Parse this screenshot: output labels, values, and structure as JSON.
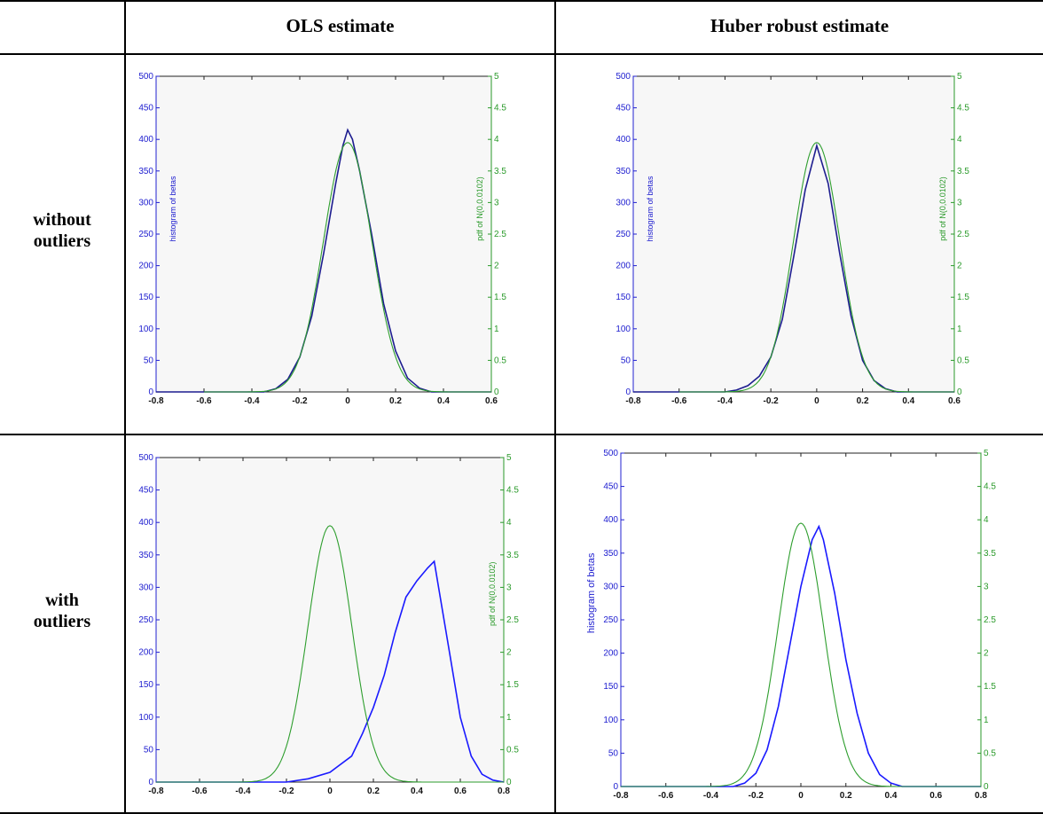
{
  "table": {
    "header": {
      "col1": "OLS estimate",
      "col2": "Huber robust estimate"
    },
    "rows": [
      {
        "label_line1": "without",
        "label_line2": "outliers"
      },
      {
        "label_line1": "with",
        "label_line2": "outliers"
      }
    ]
  },
  "colors": {
    "histogram": "#1a1aff",
    "histogram_dark": "#1d1d8f",
    "pdf": "#2e9e2e",
    "axis_left": "#2020d0",
    "axis_right": "#2a9a2a"
  },
  "chart_data": [
    {
      "id": "ols-without-outliers",
      "type": "line",
      "ylabel_left": "histogram of betas",
      "ylabel_right": "pdf of N(0,0.0102)",
      "xlim": [
        -0.8,
        0.6
      ],
      "ylim_left": [
        0,
        500
      ],
      "ylim_right": [
        0,
        5
      ],
      "x_ticks": [
        "-0.8",
        "-0.6",
        "-0.4",
        "-0.2",
        "0",
        "0.2",
        "0.4",
        "0.6"
      ],
      "y_left_ticks": [
        "0",
        "50",
        "100",
        "150",
        "200",
        "250",
        "300",
        "350",
        "400",
        "450",
        "500"
      ],
      "y_right_ticks": [
        "0",
        "0.5",
        "1",
        "1.5",
        "2",
        "2.5",
        "3",
        "3.5",
        "4",
        "4.5",
        "5"
      ],
      "series": [
        {
          "axis": "left",
          "color_key": "histogram_dark",
          "x": [
            -0.35,
            -0.3,
            -0.25,
            -0.2,
            -0.15,
            -0.1,
            -0.05,
            -0.02,
            0,
            0.02,
            0.05,
            0.1,
            0.15,
            0.2,
            0.25,
            0.3,
            0.35
          ],
          "values": [
            0,
            5,
            20,
            55,
            120,
            220,
            330,
            390,
            415,
            400,
            350,
            250,
            140,
            65,
            22,
            6,
            0
          ]
        },
        {
          "axis": "right",
          "color_key": "pdf",
          "mu": 0,
          "variance": 0.0102,
          "x_range": [
            -0.6,
            0.6
          ]
        }
      ]
    },
    {
      "id": "huber-without-outliers",
      "type": "line",
      "ylabel_left": "histogram of betas",
      "ylabel_right": "pdf of N(0,0.0102)",
      "xlim": [
        -0.8,
        0.6
      ],
      "ylim_left": [
        0,
        500
      ],
      "ylim_right": [
        0,
        5
      ],
      "x_ticks": [
        "-0.8",
        "-0.6",
        "-0.4",
        "-0.2",
        "0",
        "0.2",
        "0.4",
        "0.6"
      ],
      "y_left_ticks": [
        "0",
        "50",
        "100",
        "150",
        "200",
        "250",
        "300",
        "350",
        "400",
        "450",
        "500"
      ],
      "y_right_ticks": [
        "0",
        "0.5",
        "1",
        "1.5",
        "2",
        "2.5",
        "3",
        "3.5",
        "4",
        "4.5",
        "5"
      ],
      "series": [
        {
          "axis": "left",
          "color_key": "histogram_dark",
          "x": [
            -0.4,
            -0.35,
            -0.3,
            -0.25,
            -0.2,
            -0.15,
            -0.1,
            -0.05,
            0,
            0.05,
            0.1,
            0.15,
            0.2,
            0.25,
            0.3,
            0.35
          ],
          "values": [
            0,
            3,
            10,
            25,
            55,
            115,
            215,
            320,
            390,
            330,
            220,
            120,
            50,
            18,
            5,
            0
          ]
        },
        {
          "axis": "right",
          "color_key": "pdf",
          "mu": 0,
          "variance": 0.0102,
          "x_range": [
            -0.6,
            0.6
          ]
        }
      ]
    },
    {
      "id": "ols-with-outliers",
      "type": "line",
      "ylabel_left": "",
      "ylabel_right": "pdf of N(0,0.0102)",
      "xlim": [
        -0.8,
        0.8
      ],
      "ylim_left": [
        0,
        500
      ],
      "ylim_right": [
        0,
        5
      ],
      "x_ticks": [
        "-0.8",
        "-0.6",
        "-0.4",
        "-0.2",
        "0",
        "0.2",
        "0.4",
        "0.6",
        "0.8"
      ],
      "y_left_ticks": [
        "0",
        "50",
        "100",
        "150",
        "200",
        "250",
        "300",
        "350",
        "400",
        "450",
        "500"
      ],
      "y_right_ticks": [
        "0",
        "0.5",
        "1",
        "1.5",
        "2",
        "2.5",
        "3",
        "3.5",
        "4",
        "4.5",
        "5"
      ],
      "series": [
        {
          "axis": "left",
          "color_key": "histogram",
          "x": [
            -0.2,
            -0.1,
            0,
            0.1,
            0.15,
            0.2,
            0.25,
            0.3,
            0.35,
            0.4,
            0.45,
            0.48,
            0.5,
            0.55,
            0.6,
            0.65,
            0.7,
            0.75,
            0.8
          ],
          "values": [
            0,
            5,
            15,
            40,
            75,
            115,
            165,
            230,
            285,
            310,
            330,
            340,
            300,
            200,
            100,
            40,
            12,
            3,
            0
          ]
        },
        {
          "axis": "right",
          "color_key": "pdf",
          "mu": 0,
          "variance": 0.0102,
          "x_range": [
            -0.8,
            0.8
          ]
        }
      ]
    },
    {
      "id": "huber-with-outliers",
      "type": "line",
      "ylabel_left": "histogram of betas",
      "ylabel_right": "",
      "xlim": [
        -0.8,
        0.8
      ],
      "ylim_left": [
        0,
        500
      ],
      "ylim_right": [
        0,
        5
      ],
      "x_ticks": [
        "-0.8",
        "-0.6",
        "-0.4",
        "-0.2",
        "0",
        "0.2",
        "0.4",
        "0.6",
        "0.8"
      ],
      "y_left_ticks": [
        "0",
        "50",
        "100",
        "150",
        "200",
        "250",
        "300",
        "350",
        "400",
        "450",
        "500"
      ],
      "y_right_ticks": [
        "0",
        "0.5",
        "1",
        "1.5",
        "2",
        "2.5",
        "3",
        "3.5",
        "4",
        "4.5",
        "5"
      ],
      "series": [
        {
          "axis": "left",
          "color_key": "histogram",
          "x": [
            -0.3,
            -0.25,
            -0.2,
            -0.15,
            -0.1,
            -0.05,
            0,
            0.05,
            0.08,
            0.1,
            0.15,
            0.2,
            0.25,
            0.3,
            0.35,
            0.4,
            0.45
          ],
          "values": [
            0,
            5,
            20,
            55,
            120,
            210,
            300,
            370,
            390,
            370,
            290,
            190,
            110,
            50,
            18,
            5,
            0
          ]
        },
        {
          "axis": "right",
          "color_key": "pdf",
          "mu": 0,
          "variance": 0.0102,
          "x_range": [
            -0.8,
            0.8
          ]
        }
      ]
    }
  ]
}
